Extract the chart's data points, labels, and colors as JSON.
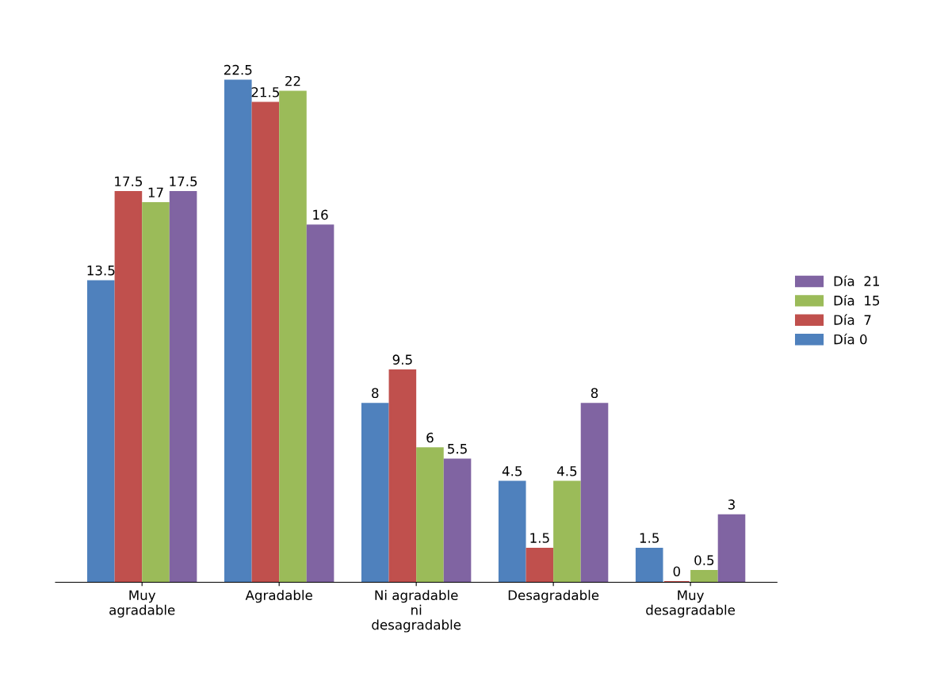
{
  "chart_data": {
    "type": "bar",
    "categories": [
      "Muy\nagradable",
      "Agradable",
      "Ni agradable\nni\ndesagradable",
      "Desagradable",
      "Muy\ndesagradable"
    ],
    "series": [
      {
        "name": "Día 0",
        "color": "#4f81bd",
        "values": [
          13.5,
          22.5,
          8,
          4.5,
          1.5
        ]
      },
      {
        "name": "Día  7",
        "color": "#c0504d",
        "values": [
          17.5,
          21.5,
          9.5,
          1.5,
          0
        ]
      },
      {
        "name": "Día  15",
        "color": "#9bbb59",
        "values": [
          17,
          22,
          6,
          4.5,
          0.5
        ]
      },
      {
        "name": "Día  21",
        "color": "#8064a2",
        "values": [
          17.5,
          16,
          5.5,
          8,
          3
        ]
      }
    ],
    "data_labels": true,
    "legend": "right",
    "grid": false
  }
}
